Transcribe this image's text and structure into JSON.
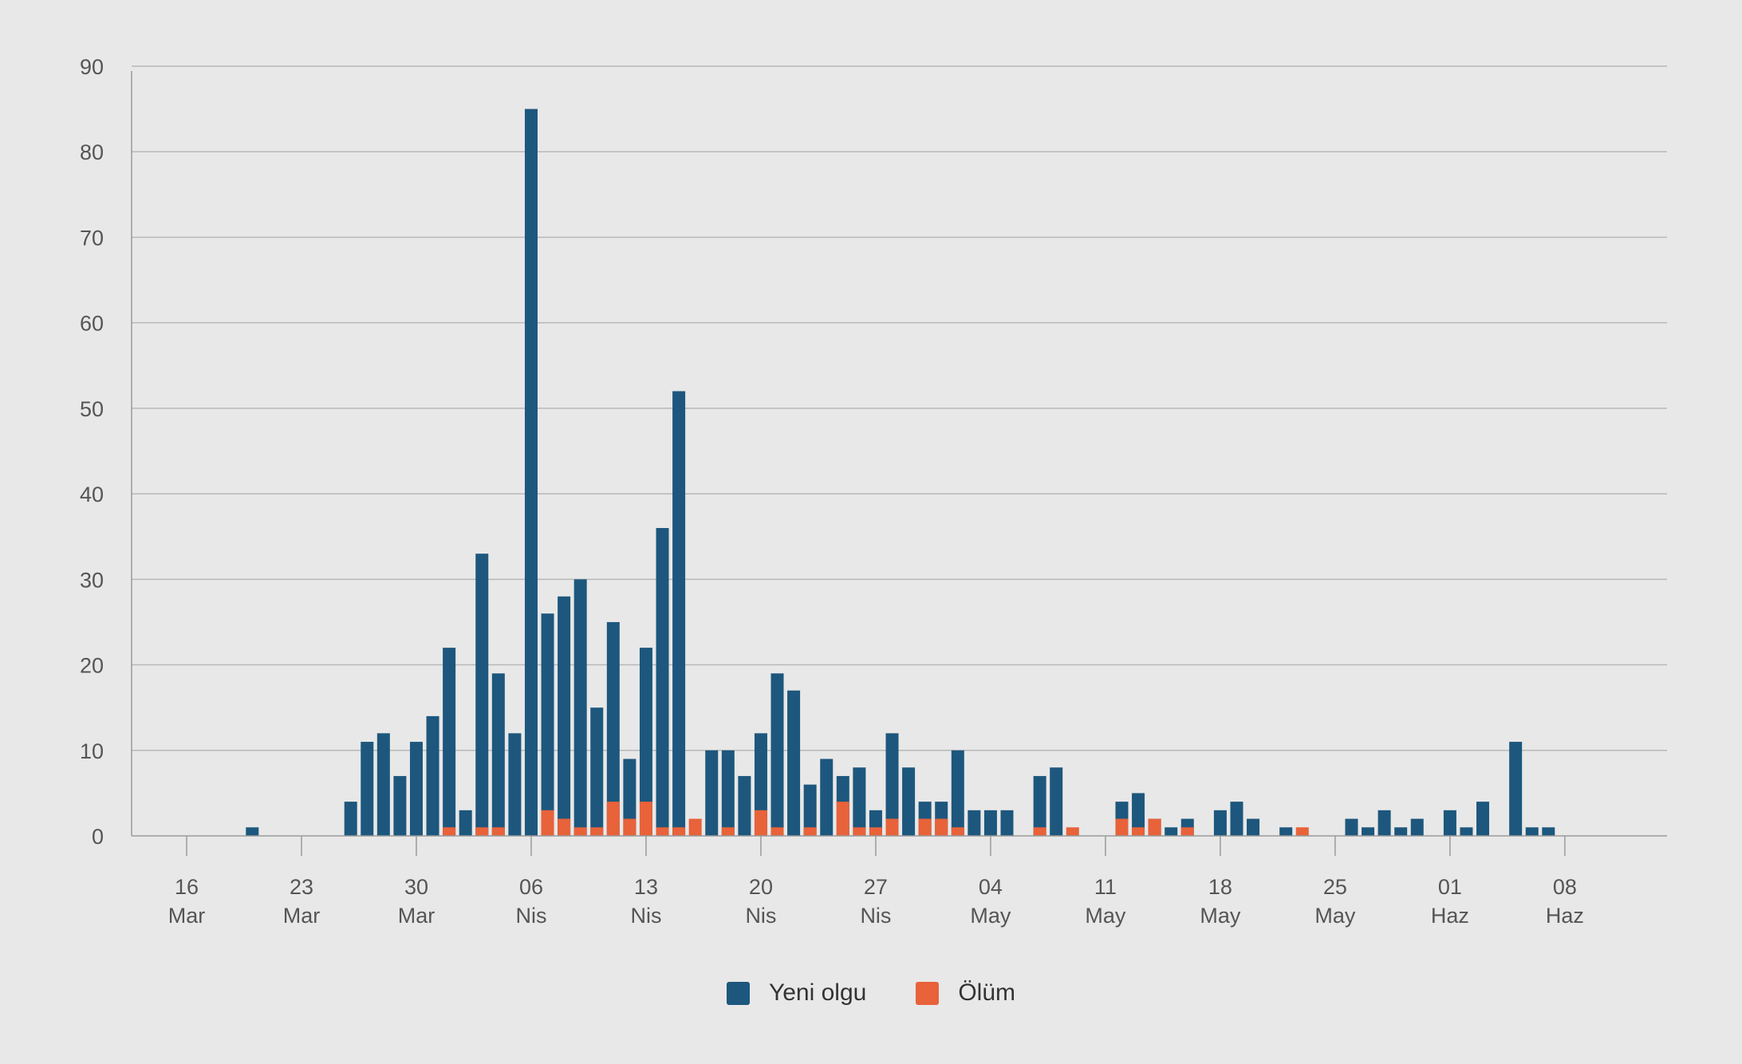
{
  "colors": {
    "background": "#e8e8e8",
    "grid": "#b8b8b8",
    "axis": "#9a9a9a",
    "yeni_olgu": "#1d577d",
    "olum": "#e8623a"
  },
  "legend": {
    "items": [
      {
        "label": "Yeni olgu",
        "color": "#1d577d"
      },
      {
        "label": "Ölüm",
        "color": "#e8623a"
      }
    ]
  },
  "chart_data": {
    "type": "bar",
    "title": "",
    "xlabel": "",
    "ylabel": "",
    "ylim": [
      0,
      90
    ],
    "yticks": [
      0,
      10,
      20,
      30,
      40,
      50,
      60,
      70,
      80,
      90
    ],
    "grid": true,
    "legend_position": "bottom-center",
    "x_ticks": [
      {
        "day": "16",
        "month": "Mar"
      },
      {
        "day": "23",
        "month": "Mar"
      },
      {
        "day": "30",
        "month": "Mar"
      },
      {
        "day": "06",
        "month": "Nis"
      },
      {
        "day": "13",
        "month": "Nis"
      },
      {
        "day": "20",
        "month": "Nis"
      },
      {
        "day": "27",
        "month": "Nis"
      },
      {
        "day": "04",
        "month": "May"
      },
      {
        "day": "11",
        "month": "May"
      },
      {
        "day": "18",
        "month": "May"
      },
      {
        "day": "25",
        "month": "May"
      },
      {
        "day": "01",
        "month": "Haz"
      },
      {
        "day": "08",
        "month": "Haz"
      }
    ],
    "categories": [
      "2020-03-16",
      "2020-03-17",
      "2020-03-18",
      "2020-03-19",
      "2020-03-20",
      "2020-03-21",
      "2020-03-22",
      "2020-03-23",
      "2020-03-24",
      "2020-03-25",
      "2020-03-26",
      "2020-03-27",
      "2020-03-28",
      "2020-03-29",
      "2020-03-30",
      "2020-03-31",
      "2020-04-01",
      "2020-04-02",
      "2020-04-03",
      "2020-04-04",
      "2020-04-05",
      "2020-04-06",
      "2020-04-07",
      "2020-04-08",
      "2020-04-09",
      "2020-04-10",
      "2020-04-11",
      "2020-04-12",
      "2020-04-13",
      "2020-04-14",
      "2020-04-15",
      "2020-04-16",
      "2020-04-17",
      "2020-04-18",
      "2020-04-19",
      "2020-04-20",
      "2020-04-21",
      "2020-04-22",
      "2020-04-23",
      "2020-04-24",
      "2020-04-25",
      "2020-04-26",
      "2020-04-27",
      "2020-04-28",
      "2020-04-29",
      "2020-04-30",
      "2020-05-01",
      "2020-05-02",
      "2020-05-03",
      "2020-05-04",
      "2020-05-05",
      "2020-05-06",
      "2020-05-07",
      "2020-05-08",
      "2020-05-09",
      "2020-05-10",
      "2020-05-11",
      "2020-05-12",
      "2020-05-13",
      "2020-05-14",
      "2020-05-15",
      "2020-05-16",
      "2020-05-17",
      "2020-05-18",
      "2020-05-19",
      "2020-05-20",
      "2020-05-21",
      "2020-05-22",
      "2020-05-23",
      "2020-05-24",
      "2020-05-25",
      "2020-05-26",
      "2020-05-27",
      "2020-05-28",
      "2020-05-29",
      "2020-05-30",
      "2020-05-31",
      "2020-06-01",
      "2020-06-02",
      "2020-06-03",
      "2020-06-04",
      "2020-06-05",
      "2020-06-06",
      "2020-06-07",
      "2020-06-08"
    ],
    "series": [
      {
        "name": "Yeni olgu",
        "values": [
          0,
          0,
          0,
          0,
          1,
          0,
          0,
          0,
          0,
          0,
          4,
          11,
          12,
          7,
          11,
          14,
          22,
          3,
          33,
          19,
          12,
          85,
          26,
          28,
          30,
          15,
          25,
          9,
          22,
          36,
          52,
          0,
          10,
          10,
          7,
          12,
          19,
          17,
          6,
          9,
          7,
          8,
          3,
          12,
          8,
          4,
          4,
          10,
          3,
          3,
          3,
          0,
          7,
          8,
          0,
          0,
          0,
          4,
          5,
          2,
          1,
          2,
          0,
          3,
          4,
          2,
          0,
          1,
          0,
          0,
          0,
          2,
          1,
          3,
          1,
          2,
          0,
          3,
          1,
          4,
          0,
          11,
          1,
          1,
          0
        ]
      },
      {
        "name": "Ölüm",
        "values": [
          0,
          0,
          0,
          0,
          0,
          0,
          0,
          0,
          0,
          0,
          0,
          0,
          0,
          0,
          0,
          0,
          1,
          0,
          1,
          1,
          0,
          0,
          3,
          2,
          1,
          1,
          4,
          2,
          4,
          1,
          1,
          2,
          0,
          1,
          0,
          3,
          1,
          0,
          1,
          0,
          4,
          1,
          1,
          2,
          0,
          2,
          2,
          1,
          0,
          0,
          0,
          0,
          1,
          0,
          1,
          0,
          0,
          2,
          1,
          2,
          0,
          1,
          0,
          0,
          0,
          0,
          0,
          0,
          1,
          0,
          0,
          0,
          0,
          0,
          0,
          0,
          0,
          0,
          0,
          0,
          0,
          0,
          0,
          0,
          0
        ]
      }
    ]
  }
}
